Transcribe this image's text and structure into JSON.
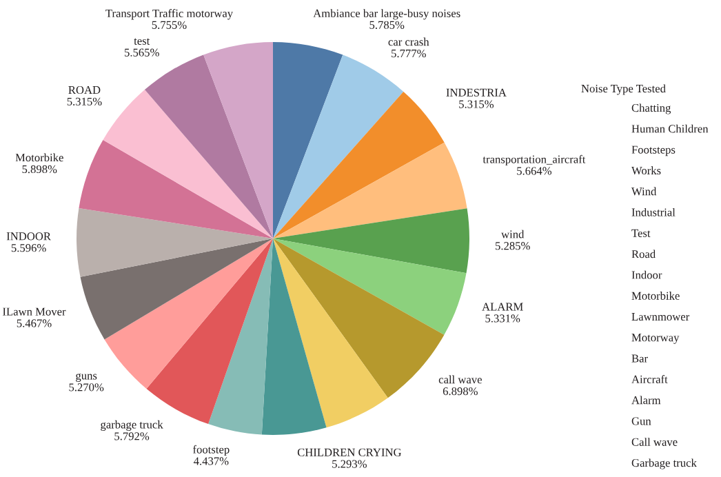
{
  "chart_data": {
    "type": "pie",
    "categories": [
      "Ambiance bar large-busy noises",
      "car crash",
      "INDESTRIA",
      "transportation_aircraft",
      "wind",
      "ALARM",
      "call wave",
      null,
      "CHILDREN CRYING",
      "footstep",
      "garbage truck",
      "guns",
      "ILawn Mover",
      "INDOOR",
      "Motorbike",
      "ROAD",
      "test",
      "Transport Traffic motorway"
    ],
    "values": [
      5.785,
      5.777,
      5.315,
      5.664,
      5.285,
      5.331,
      6.898,
      5.557,
      5.293,
      4.437,
      5.792,
      5.27,
      5.467,
      5.596,
      5.898,
      5.315,
      5.565,
      5.755
    ],
    "value_labels": [
      "5.785%",
      "5.777%",
      "5.315%",
      "5.664%",
      "5.285%",
      "5.331%",
      "6.898%",
      null,
      "5.293%",
      "4.437%",
      "5.792%",
      "5.270%",
      "5.467%",
      "5.596%",
      "5.898%",
      "5.315%",
      "5.565%",
      "5.755%"
    ],
    "colors": [
      "#4e79a7",
      "#a0cbe8",
      "#f28e2b",
      "#ffbe7d",
      "#59a14f",
      "#8cd17d",
      "#b6992d",
      "#f1ce63",
      "#499894",
      "#86bcb6",
      "#e15759",
      "#ff9d9a",
      "#79706e",
      "#bab0ac",
      "#d37295",
      "#fabfd2",
      "#b07aa1",
      "#d4a6c8"
    ],
    "legend_title": "Noise Type Tested",
    "annotations": [
      "Chatting",
      "Human Children",
      "Footsteps",
      "Works",
      "Wind",
      "Industrial",
      "Test",
      "Road",
      "Indoor",
      "Motorbike",
      "Lawnmower",
      "Motorway",
      "Bar",
      "Aircraft",
      "Alarm",
      "Gun",
      "Call wave",
      "Garbage truck"
    ]
  }
}
